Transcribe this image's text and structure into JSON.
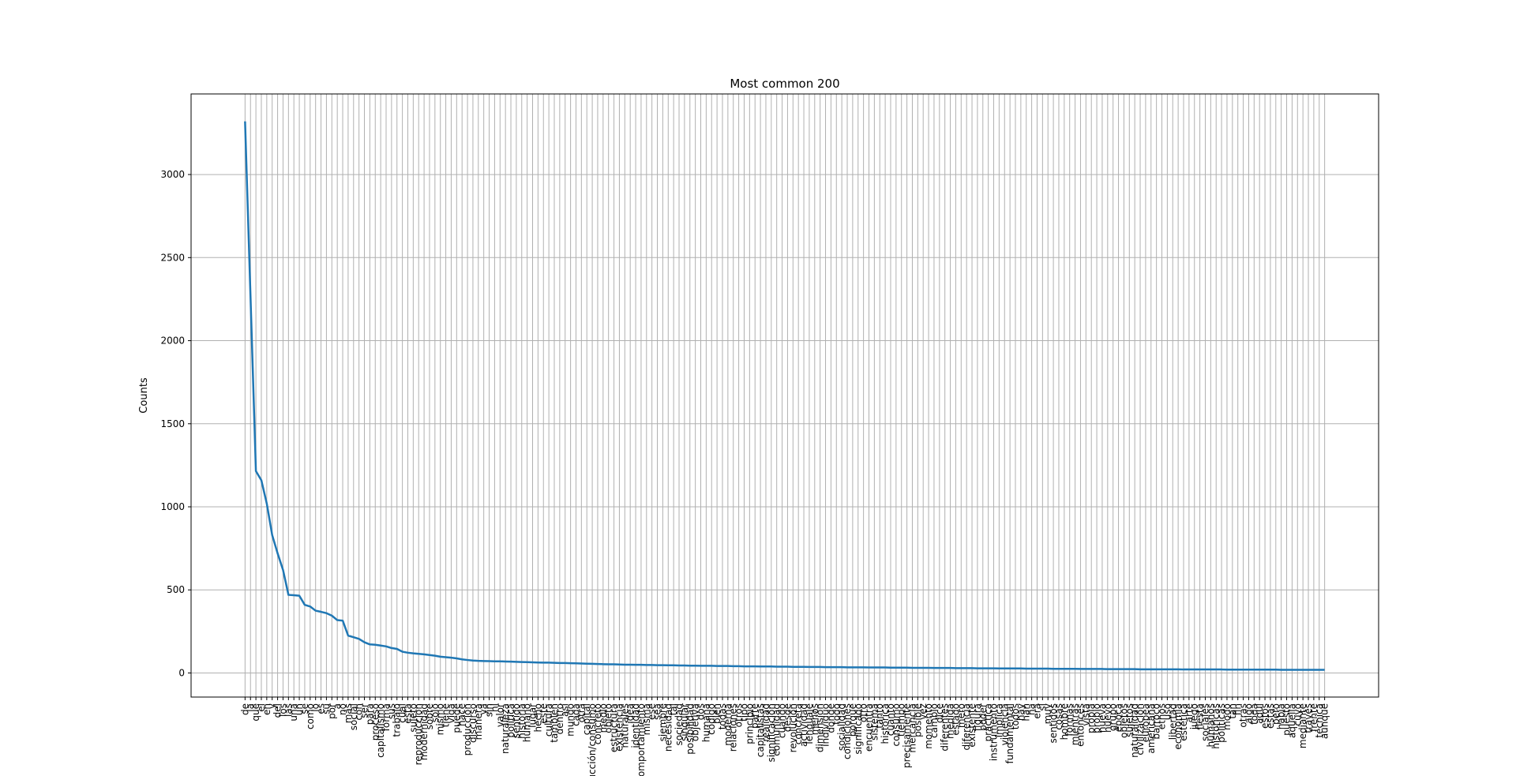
{
  "chart_data": {
    "type": "line",
    "title": "Most common 200",
    "ylabel": "Counts",
    "color": "#1f77b4",
    "grid": true,
    "ylim": [
      -145,
      3485
    ],
    "yticks": [
      0,
      500,
      1000,
      1500,
      2000,
      2500,
      3000
    ],
    "categories": [
      "de",
      "la",
      "que",
      "el",
      "en",
      "y",
      "del",
      "los",
      "las",
      "una",
      "un",
      "se",
      "como",
      "lo",
      "es",
      "su",
      "por",
      "a",
      "no",
      "más",
      "social",
      "con",
      "ser",
      "para",
      "proceso",
      "capitalismo",
      "forma",
      "sus",
      "trabajo",
      "cual",
      "esta",
      "sujeto",
      "reproducción",
      "modernidad",
      "sobre",
      "sólo",
      "mismo",
      "tiene",
      "vida",
      "puede",
      "hace",
      "producción",
      "discurso",
      "manera",
      "ya",
      "sin",
      "ni",
      "valor",
      "naturaleza",
      "política",
      "sentido",
      "historia",
      "humano",
      "lugar",
      "hecho",
      "este",
      "cultura",
      "también",
      "dentro",
      "así",
      "mundo",
      "cada",
      "otra",
      "capital",
      "producción/consumo",
      "concreto",
      "medio",
      "objeto",
      "estructura",
      "existencia",
      "naturales",
      "idea",
      "identidad",
      "comportamiento",
      "misma",
      "ese",
      "sea",
      "siempre",
      "necesidad",
      "tal",
      "sociedad",
      "singular",
      "posibilidad",
      "objetiva",
      "dos",
      "humana",
      "código",
      "bien",
      "todas",
      "moderna",
      "relaciones",
      "otros",
      "tipo",
      "principio",
      "parte",
      "capitalistas",
      "realidad",
      "significación",
      "comunidad",
      "cuando",
      "desde",
      "revolución",
      "concreta",
      "actividad",
      "lenguaje",
      "menos",
      "dimensión",
      "individuo",
      "donde",
      "todo",
      "socialidad",
      "condiciones",
      "porque",
      "significado",
      "otro",
      "encuentra",
      "sistema",
      "tanto",
      "histórica",
      "cuanto",
      "consumo",
      "tiempo",
      "precisamente",
      "mercancía",
      "posible",
      "vez",
      "momento",
      "cambio",
      "dice",
      "diferentes",
      "medida",
      "estado",
      "mero",
      "diferencia",
      "existente",
      "figura",
      "poder",
      "práctica",
      "instrumento",
      "implica",
      "violencia",
      "fundamental",
      "todos",
      "hay",
      "han",
      "ha",
      "era",
      "sí",
      "muy",
      "sentidos",
      "cosas",
      "hombre",
      "formas",
      "mientras",
      "entonces",
      "vista",
      "propia",
      "propio",
      "nueva",
      "nuevo",
      "grupo",
      "época",
      "objetos",
      "sujetos",
      "naturalidad",
      "civilización",
      "europea",
      "americana",
      "barroco",
      "ethos",
      "uso",
      "libertad",
      "economía",
      "estética",
      "arte",
      "juego",
      "fiesta",
      "sociales",
      "humanos",
      "históricas",
      "políticas",
      "modo",
      "tan",
      "fin",
      "otras",
      "algo",
      "toda",
      "aquí",
      "estos",
      "estas",
      "pero",
      "había",
      "puesto",
      "aquella",
      "cuyo",
      "mediante",
      "través",
      "frente",
      "técnica",
      "aunque"
    ],
    "values": [
      3320,
      2270,
      1215,
      1160,
      1020,
      830,
      720,
      620,
      470,
      468,
      465,
      410,
      400,
      375,
      368,
      360,
      345,
      318,
      315,
      225,
      215,
      205,
      185,
      172,
      170,
      165,
      160,
      150,
      145,
      128,
      122,
      118,
      115,
      112,
      108,
      104,
      98,
      95,
      92,
      88,
      82,
      78,
      75,
      73,
      72,
      71,
      70,
      70,
      69,
      68,
      67,
      66,
      65,
      64,
      63,
      62,
      62,
      61,
      60,
      60,
      59,
      58,
      57,
      56,
      55,
      54,
      53,
      52,
      52,
      51,
      50,
      50,
      49,
      49,
      48,
      48,
      47,
      47,
      46,
      46,
      45,
      45,
      44,
      44,
      43,
      43,
      43,
      42,
      42,
      42,
      41,
      41,
      40,
      40,
      40,
      39,
      39,
      39,
      38,
      38,
      38,
      37,
      37,
      37,
      36,
      36,
      36,
      35,
      35,
      35,
      35,
      34,
      34,
      34,
      34,
      33,
      33,
      33,
      33,
      32,
      32,
      32,
      32,
      31,
      31,
      31,
      31,
      30,
      30,
      30,
      30,
      29,
      29,
      29,
      29,
      28,
      28,
      28,
      28,
      27,
      27,
      27,
      27,
      27,
      26,
      26,
      26,
      26,
      26,
      25,
      25,
      25,
      25,
      25,
      24,
      24,
      24,
      24,
      24,
      23,
      23,
      23,
      23,
      23,
      23,
      22,
      22,
      22,
      22,
      22,
      22,
      22,
      22,
      21,
      21,
      21,
      21,
      21,
      21,
      21,
      21,
      20,
      20,
      20,
      20,
      20,
      20,
      20,
      20,
      20,
      20,
      19,
      19,
      19,
      19,
      19,
      19,
      19,
      19,
      19
    ]
  }
}
